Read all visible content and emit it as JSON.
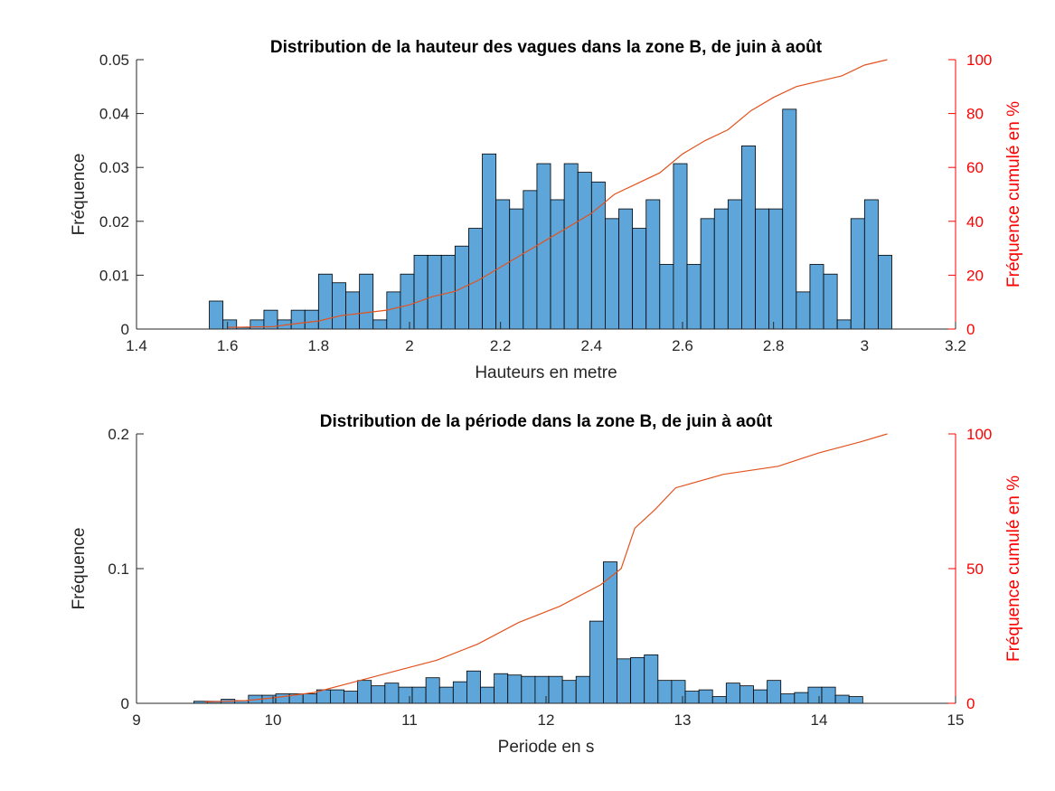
{
  "chart_data": [
    {
      "type": "bar",
      "title": "Distribution de la hauteur des vagues dans la zone B, de juin à août",
      "xlabel": "Hauteurs en metre",
      "ylabel": "Fréquence",
      "ylabel_right": "Fréquence cumulé en %",
      "xlim": [
        1.4,
        3.2
      ],
      "ylim": [
        0,
        0.05
      ],
      "ylim_right": [
        0,
        100
      ],
      "xticks": [
        "1.4",
        "1.6",
        "1.8",
        "2",
        "2.2",
        "2.4",
        "2.6",
        "2.8",
        "3",
        "3.2"
      ],
      "yticks": [
        "0",
        "0.01",
        "0.02",
        "0.03",
        "0.04",
        "0.05"
      ],
      "yticks_right": [
        "0",
        "20",
        "40",
        "60",
        "80",
        "100"
      ],
      "bin_start": 1.56,
      "bin_width": 0.03,
      "values": [
        0.0052,
        0.0017,
        0.0003,
        0.0017,
        0.0035,
        0.0017,
        0.0035,
        0.0035,
        0.0102,
        0.0086,
        0.0069,
        0.0102,
        0.0017,
        0.0069,
        0.0102,
        0.0137,
        0.0137,
        0.0137,
        0.0154,
        0.0187,
        0.0325,
        0.024,
        0.0223,
        0.0257,
        0.0307,
        0.024,
        0.0307,
        0.0291,
        0.0273,
        0.0205,
        0.0223,
        0.0187,
        0.024,
        0.012,
        0.0307,
        0.012,
        0.0205,
        0.0223,
        0.024,
        0.034,
        0.0223,
        0.0223,
        0.0408,
        0.0069,
        0.012,
        0.0102,
        0.0017,
        0.0205,
        0.024,
        0.0137
      ],
      "bar_color": "#5ea5d9",
      "cumulative_color": "#e2531f",
      "cumulative": [
        [
          1.6,
          0.6
        ],
        [
          1.7,
          0.9
        ],
        [
          1.75,
          2
        ],
        [
          1.8,
          3
        ],
        [
          1.85,
          5
        ],
        [
          1.9,
          6
        ],
        [
          1.95,
          7
        ],
        [
          2.0,
          9
        ],
        [
          2.05,
          12
        ],
        [
          2.1,
          14
        ],
        [
          2.15,
          18
        ],
        [
          2.2,
          23
        ],
        [
          2.25,
          28
        ],
        [
          2.3,
          33
        ],
        [
          2.35,
          38
        ],
        [
          2.4,
          43
        ],
        [
          2.45,
          50
        ],
        [
          2.5,
          54
        ],
        [
          2.55,
          58
        ],
        [
          2.6,
          65
        ],
        [
          2.65,
          70
        ],
        [
          2.7,
          74
        ],
        [
          2.75,
          81
        ],
        [
          2.8,
          86
        ],
        [
          2.85,
          90
        ],
        [
          2.9,
          92
        ],
        [
          2.95,
          94
        ],
        [
          3.0,
          98
        ],
        [
          3.05,
          100
        ]
      ]
    },
    {
      "type": "bar",
      "title": "Distribution de la période dans la zone B, de juin à août",
      "xlabel": "Periode en s",
      "ylabel": "Fréquence",
      "ylabel_right": "Fréquence cumulé en %",
      "xlim": [
        9,
        15
      ],
      "ylim": [
        0,
        0.2
      ],
      "ylim_right": [
        0,
        100
      ],
      "xticks": [
        "9",
        "10",
        "11",
        "12",
        "13",
        "14",
        "15"
      ],
      "yticks": [
        "0",
        "0.1",
        "0.2"
      ],
      "yticks_right": [
        "0",
        "50",
        "100"
      ],
      "bin_start": 9.42,
      "bin_width": 0.1,
      "values": [
        0.0015,
        0.0015,
        0.003,
        0.002,
        0.006,
        0.006,
        0.007,
        0.007,
        0.007,
        0.01,
        0.01,
        0.009,
        0.017,
        0.013,
        0.015,
        0.012,
        0.012,
        0.019,
        0.012,
        0.016,
        0.024,
        0.012,
        0.022,
        0.021,
        0.02,
        0.02,
        0.02,
        0.017,
        0.02,
        0.061,
        0.105,
        0.033,
        0.034,
        0.036,
        0.017,
        0.017,
        0.009,
        0.01,
        0.005,
        0.015,
        0.013,
        0.01,
        0.017,
        0.007,
        0.008,
        0.012,
        0.012,
        0.006,
        0.005
      ],
      "bar_color": "#5ea5d9",
      "cumulative_color": "#e2531f",
      "cumulative": [
        [
          9.5,
          0.5
        ],
        [
          9.8,
          1
        ],
        [
          10.0,
          2
        ],
        [
          10.3,
          4
        ],
        [
          10.6,
          8
        ],
        [
          10.9,
          12
        ],
        [
          11.2,
          16
        ],
        [
          11.5,
          22
        ],
        [
          11.8,
          30
        ],
        [
          12.1,
          36
        ],
        [
          12.4,
          44
        ],
        [
          12.55,
          50
        ],
        [
          12.65,
          65
        ],
        [
          12.8,
          72
        ],
        [
          12.95,
          80
        ],
        [
          13.3,
          85
        ],
        [
          13.7,
          88
        ],
        [
          14.0,
          93
        ],
        [
          14.3,
          97
        ],
        [
          14.5,
          100
        ]
      ]
    }
  ]
}
